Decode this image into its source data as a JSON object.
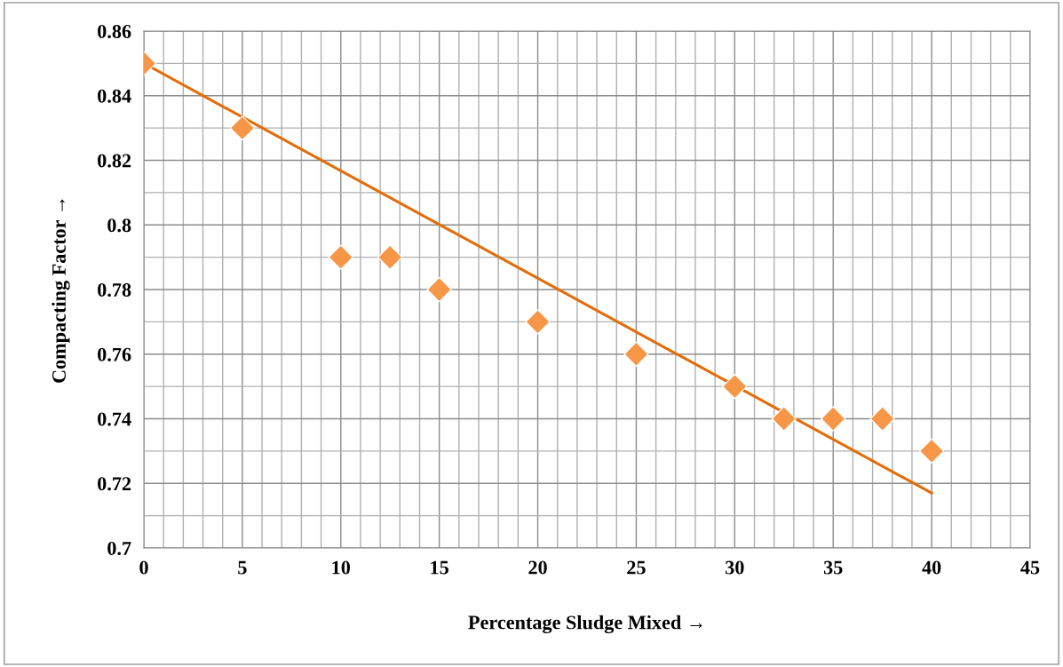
{
  "chart_data": {
    "type": "scatter",
    "xlabel": "Percentage Sludge Mixed →",
    "ylabel": "Compacting Factor →",
    "xlim": [
      0,
      45
    ],
    "xticks": [
      0,
      5,
      10,
      15,
      20,
      25,
      30,
      35,
      40,
      45
    ],
    "ylim": [
      0.7,
      0.86
    ],
    "yticks": [
      0.7,
      0.72,
      0.74,
      0.76,
      0.78,
      0.8,
      0.82,
      0.84,
      0.86
    ],
    "grid": true,
    "series": [
      {
        "marker": "diamond",
        "color": "#f79646",
        "x": [
          0,
          5,
          10,
          12.5,
          15,
          20,
          25,
          30,
          32.5,
          35,
          37.5,
          40
        ],
        "values": [
          0.85,
          0.83,
          0.79,
          0.79,
          0.78,
          0.77,
          0.76,
          0.75,
          0.74,
          0.74,
          0.74,
          0.73
        ]
      },
      {
        "type": "line",
        "color": "#e46c0a",
        "x": [
          0,
          40
        ],
        "values": [
          0.85,
          0.717
        ]
      }
    ]
  }
}
